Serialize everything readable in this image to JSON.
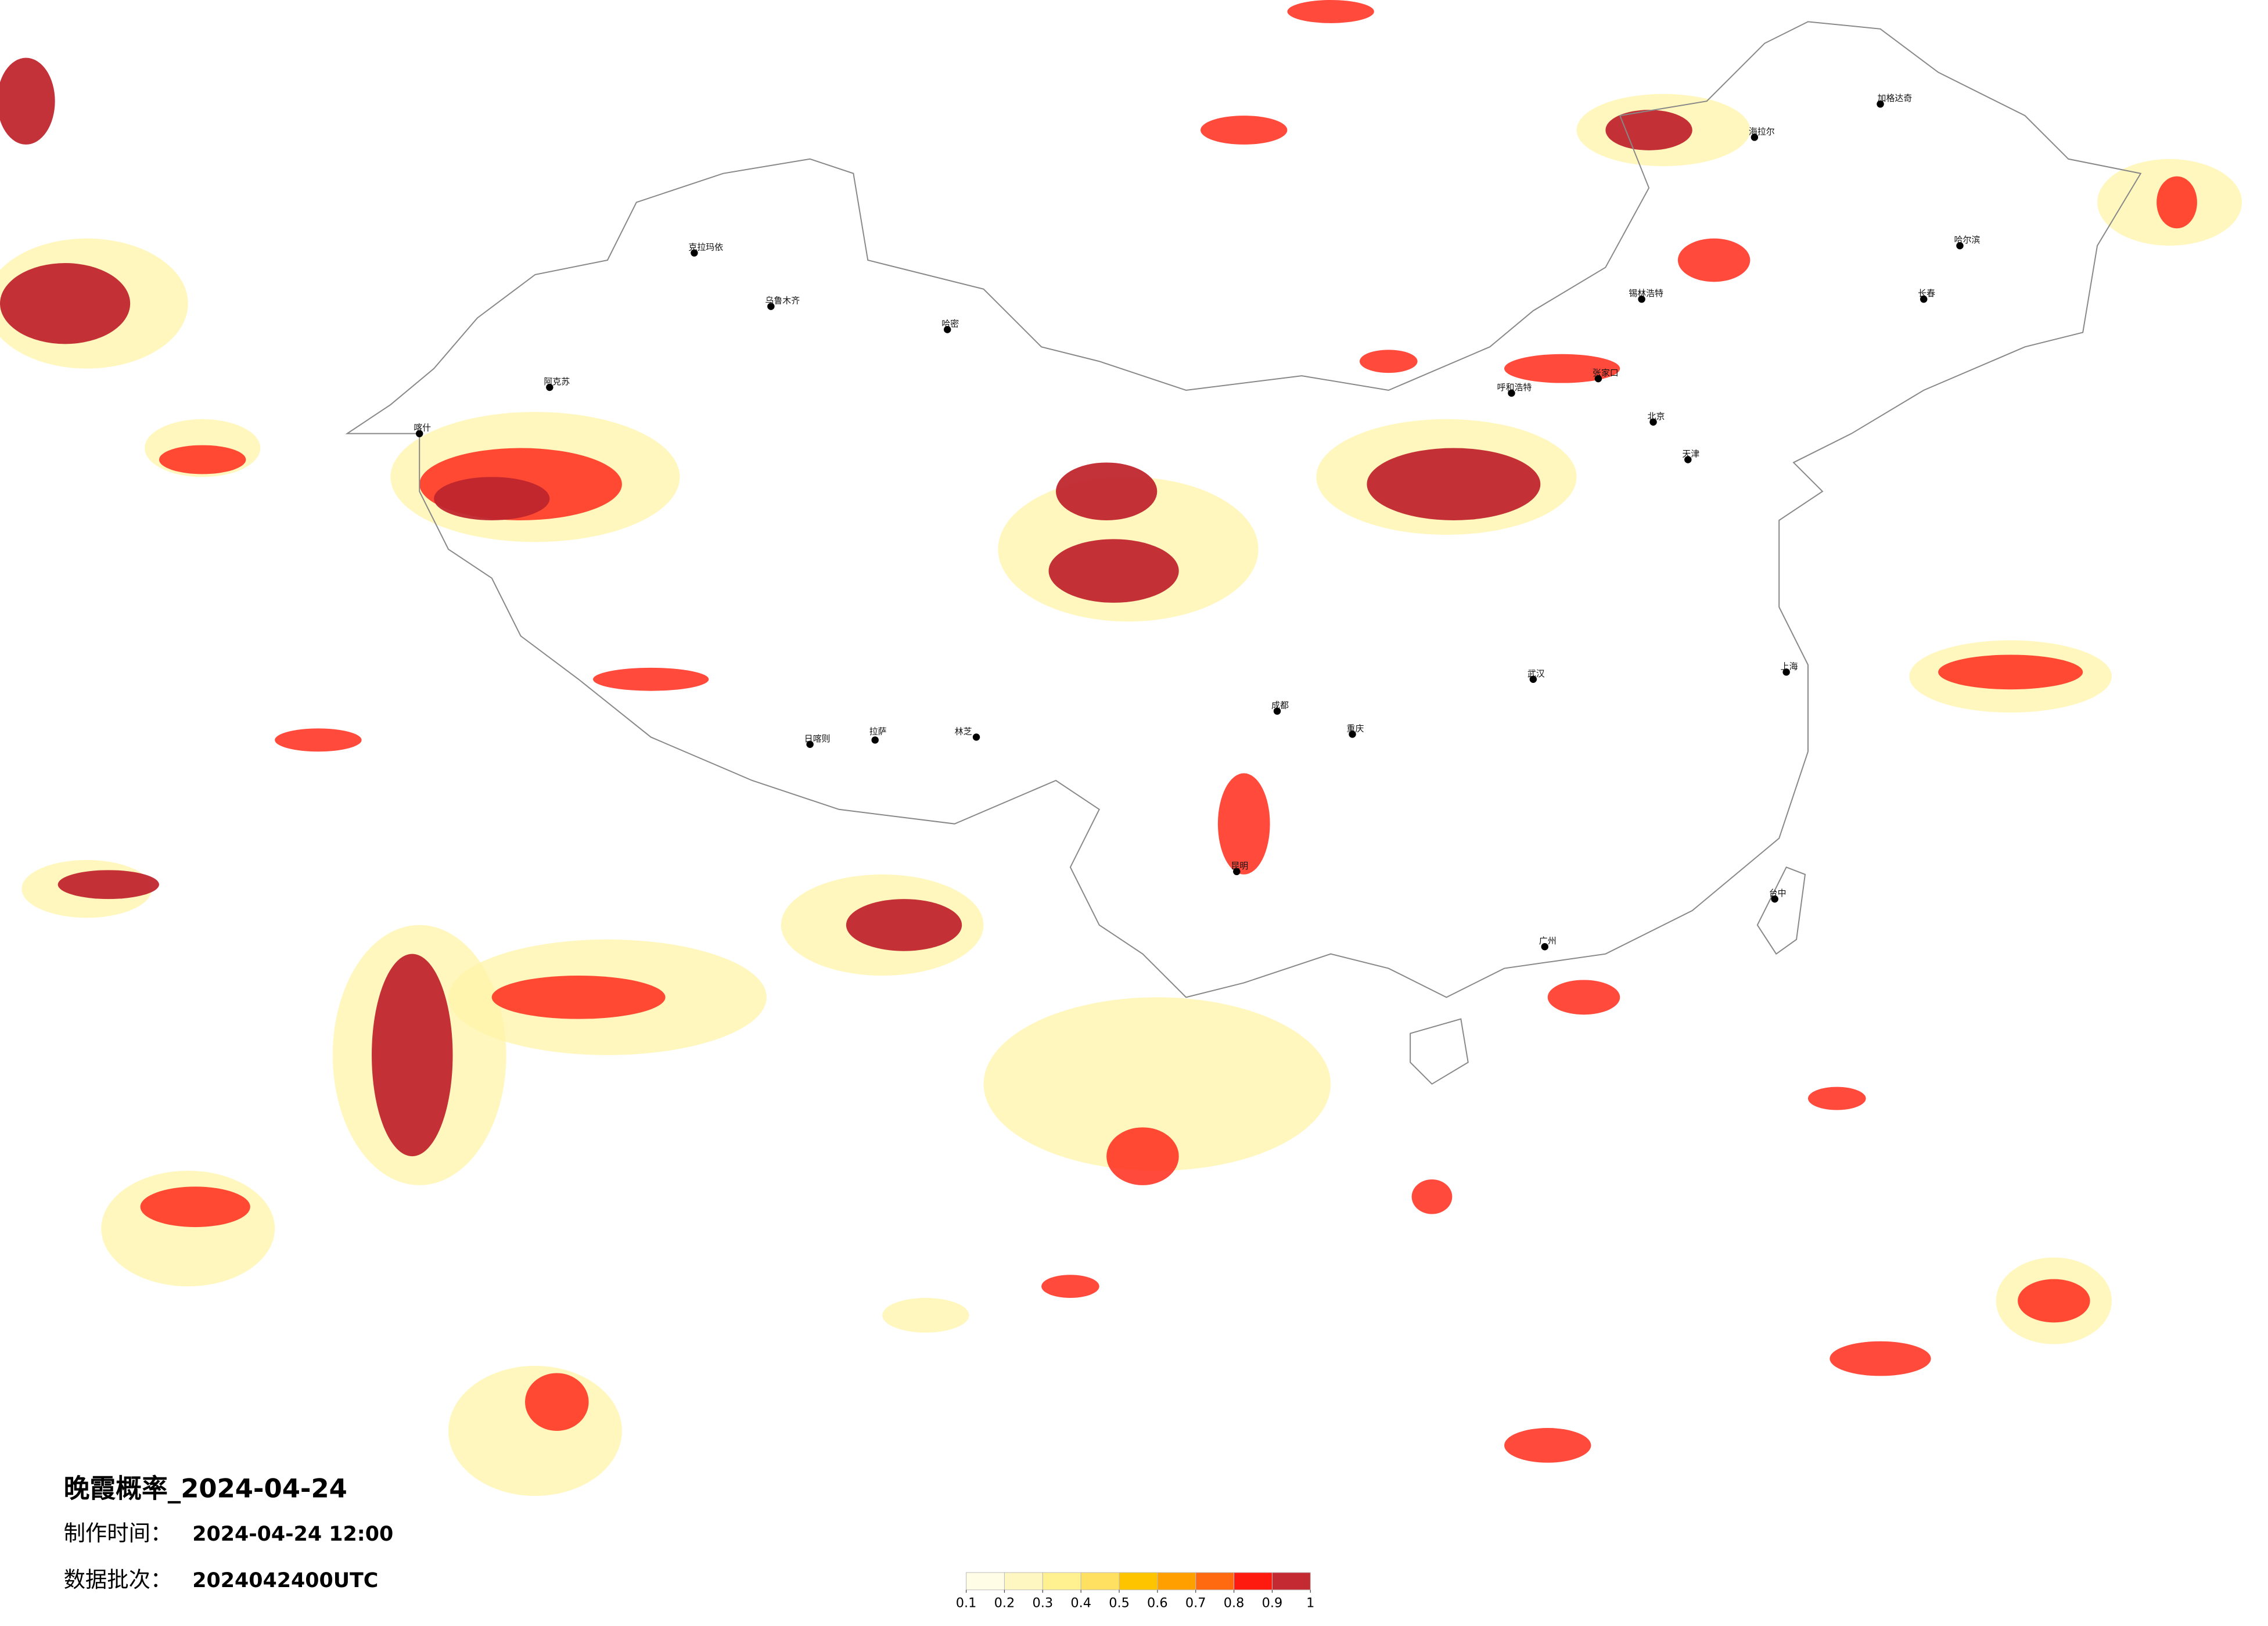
{
  "title": "晚霞概率_2024-04-24",
  "made_time": {
    "label": "制作时间：",
    "value": "2024-04-24 12:00"
  },
  "batch": {
    "label": "数据批次：",
    "value": "2024042400UTC"
  },
  "cities": [
    "克拉玛依",
    "乌鲁木齐",
    "哈密",
    "阿克苏",
    "喀什",
    "拉萨",
    "日喀则",
    "林芝",
    "北京",
    "天津",
    "上海",
    "广州",
    "昆明",
    "成都",
    "重庆",
    "武汉",
    "哈尔滨",
    "长春",
    "呼和浩特",
    "海拉尔",
    "加格达奇",
    "台中",
    "张家口",
    "锡林浩特"
  ],
  "legend": {
    "ticks": [
      0.1,
      0.2,
      0.3,
      0.4,
      0.5,
      0.6,
      0.7,
      0.8,
      0.9,
      1
    ],
    "colors": [
      "#fffde6",
      "#fff7c2",
      "#fff090",
      "#ffe060",
      "#ffc400",
      "#ffa000",
      "#ff6a10",
      "#ff1a10",
      "#c42a32"
    ]
  }
}
